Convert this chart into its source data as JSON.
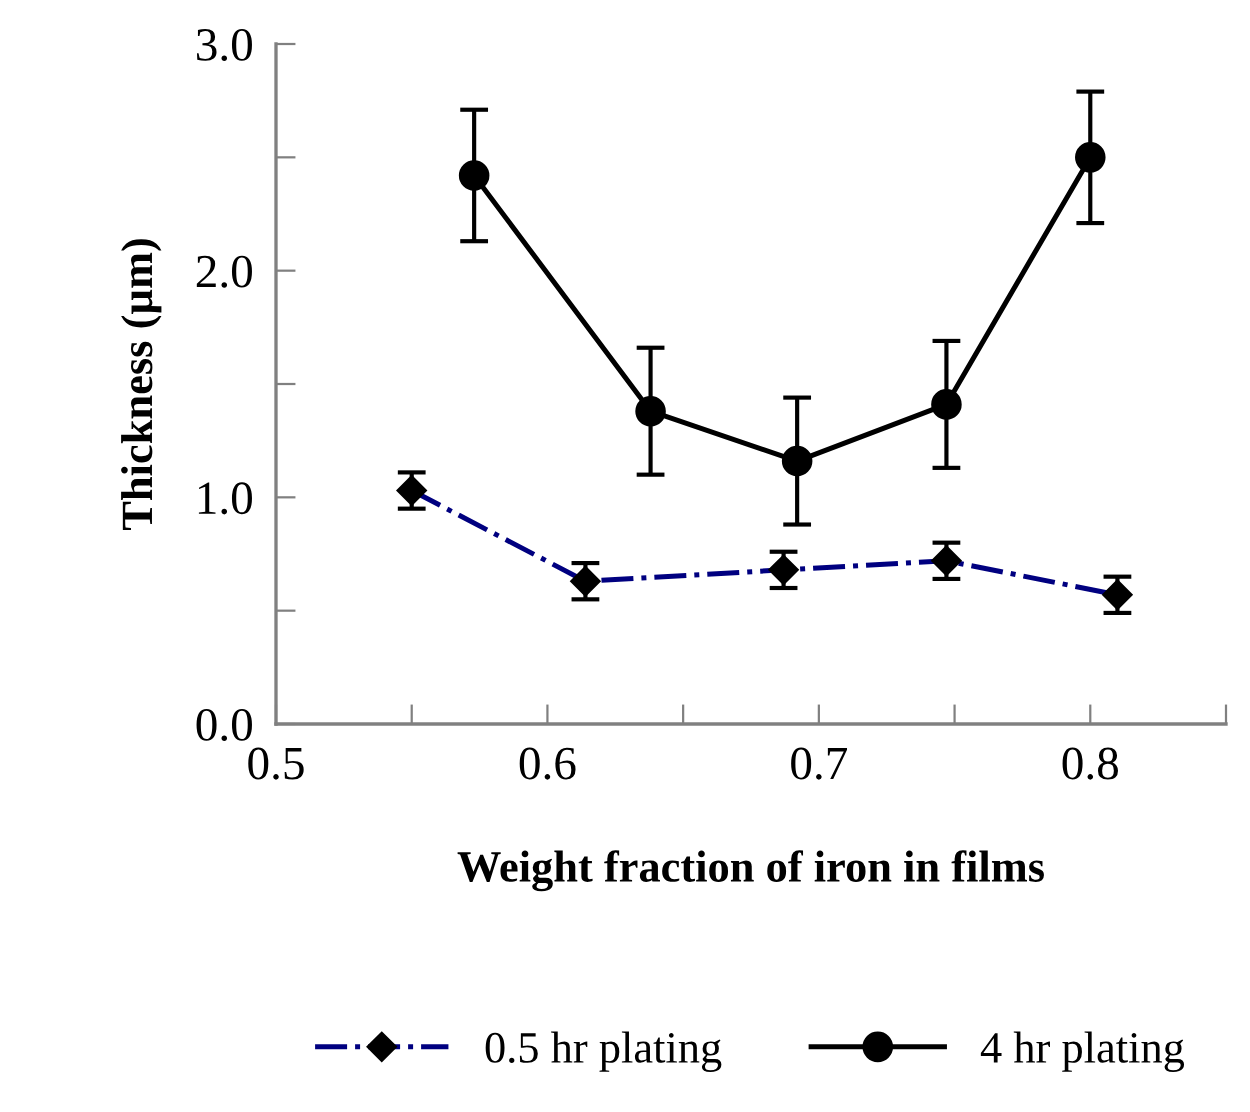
{
  "chart_data": {
    "type": "line",
    "xlabel": "Weight fraction of iron in films",
    "ylabel": "Thickness (µm)",
    "xlim": [
      0.5,
      0.85
    ],
    "ylim": [
      0,
      3
    ],
    "xticks": [
      0.5,
      {
        "value": 0.55,
        "label": null
      },
      0.6,
      {
        "value": 0.65,
        "label": null
      },
      0.7,
      {
        "value": 0.75,
        "label": null
      },
      0.8,
      {
        "value": 0.85,
        "label": null
      }
    ],
    "yticks": [
      {
        "value": 0,
        "label": "0.0"
      },
      {
        "value": 0.5,
        "label": null
      },
      {
        "value": 1,
        "label": "1.0"
      },
      {
        "value": 1.5,
        "label": null
      },
      {
        "value": 2,
        "label": "2.0"
      },
      {
        "value": 2.5,
        "label": null
      },
      {
        "value": 3,
        "label": "3.0"
      }
    ],
    "grid": false,
    "legend": "bottom",
    "series": [
      {
        "name": "0.5 hr plating",
        "color": "#000080",
        "marker": "diamond",
        "line_style": "dashdot",
        "x": [
          0.55,
          0.614,
          0.687,
          0.747,
          0.81
        ],
        "values": [
          1.03,
          0.63,
          0.68,
          0.72,
          0.57
        ],
        "errors": [
          0.08,
          0.08,
          0.08,
          0.08,
          0.08
        ]
      },
      {
        "name": "4 hr plating",
        "color": "#000000",
        "marker": "circle",
        "line_style": "solid",
        "x": [
          0.573,
          0.638,
          0.692,
          0.747,
          0.8
        ],
        "values": [
          2.42,
          1.38,
          1.16,
          1.41,
          2.5
        ],
        "errors": [
          0.29,
          0.28,
          0.28,
          0.28,
          0.29
        ]
      }
    ]
  }
}
